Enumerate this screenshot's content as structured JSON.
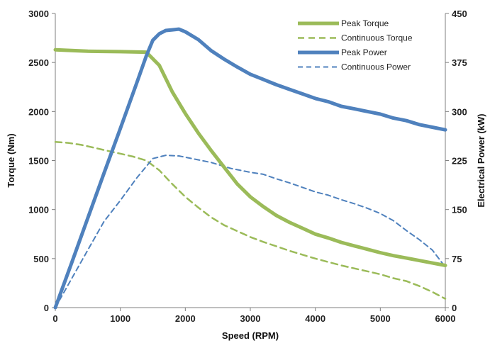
{
  "chart_data": {
    "type": "line",
    "xlabel": "Speed (RPM)",
    "ylabel": "Torque (Nm)",
    "y2label": "Electrical Power (kW)",
    "xlim": [
      0,
      6000
    ],
    "ylim": [
      0,
      3000
    ],
    "y2lim": [
      0,
      450
    ],
    "x_ticks": [
      0,
      1000,
      2000,
      3000,
      4000,
      5000,
      6000
    ],
    "y_ticks": [
      0,
      500,
      1000,
      1500,
      2000,
      2500,
      3000
    ],
    "y2_ticks": [
      0,
      75,
      150,
      225,
      300,
      375,
      450
    ],
    "grid": false,
    "legend_position": "top-right",
    "colors": {
      "torque": "#9bbb59",
      "power": "#4f81bd"
    },
    "series": [
      {
        "name": "Peak Torque",
        "axis": "left",
        "style": "solid",
        "x": [
          0,
          500,
          1000,
          1400,
          1600,
          1800,
          2000,
          2200,
          2400,
          2600,
          2800,
          3000,
          3200,
          3400,
          3600,
          3800,
          4000,
          4200,
          4400,
          4600,
          4800,
          5000,
          5200,
          5400,
          5600,
          5800,
          6000
        ],
        "y": [
          2630,
          2615,
          2610,
          2605,
          2470,
          2200,
          1980,
          1780,
          1600,
          1430,
          1260,
          1130,
          1030,
          940,
          870,
          810,
          750,
          710,
          665,
          630,
          595,
          560,
          530,
          505,
          480,
          455,
          430
        ]
      },
      {
        "name": "Continuous Torque",
        "axis": "left",
        "style": "dashed",
        "x": [
          0,
          200,
          400,
          600,
          800,
          1000,
          1200,
          1400,
          1600,
          1800,
          2000,
          2200,
          2400,
          2600,
          2800,
          3000,
          3200,
          3400,
          3600,
          3800,
          4000,
          4200,
          4400,
          4600,
          4800,
          5000,
          5200,
          5400,
          5600,
          5800,
          6000
        ],
        "y": [
          1690,
          1680,
          1660,
          1630,
          1600,
          1570,
          1540,
          1500,
          1400,
          1260,
          1130,
          1020,
          920,
          840,
          780,
          720,
          670,
          625,
          580,
          540,
          500,
          465,
          430,
          400,
          370,
          340,
          300,
          270,
          220,
          160,
          90
        ]
      },
      {
        "name": "Peak Power",
        "axis": "right",
        "style": "solid",
        "x": [
          0,
          250,
          500,
          750,
          1000,
          1250,
          1400,
          1500,
          1600,
          1700,
          1800,
          1900,
          2000,
          2200,
          2400,
          2600,
          2800,
          3000,
          3200,
          3400,
          3600,
          3800,
          4000,
          4200,
          4400,
          4600,
          4800,
          5000,
          5200,
          5400,
          5600,
          5800,
          6000
        ],
        "y": [
          0,
          68,
          137,
          206,
          274,
          343,
          385,
          409,
          419,
          424,
          425,
          426,
          422,
          410,
          393,
          380,
          368,
          357,
          349,
          341,
          334,
          327,
          320,
          315,
          308,
          304,
          300,
          296,
          290,
          286,
          280,
          276,
          272
        ]
      },
      {
        "name": "Continuous Power",
        "axis": "right",
        "style": "dashed",
        "x": [
          0,
          250,
          500,
          750,
          1000,
          1250,
          1500,
          1700,
          1900,
          2100,
          2400,
          2700,
          3000,
          3200,
          3400,
          3600,
          3800,
          4000,
          4200,
          4400,
          4600,
          4800,
          5000,
          5200,
          5400,
          5600,
          5800,
          6000
        ],
        "y": [
          0,
          44,
          88,
          132,
          164,
          198,
          228,
          233,
          232,
          228,
          222,
          213,
          207,
          204,
          197,
          191,
          184,
          177,
          172,
          165,
          159,
          152,
          144,
          133,
          118,
          104,
          88,
          62
        ]
      }
    ]
  }
}
